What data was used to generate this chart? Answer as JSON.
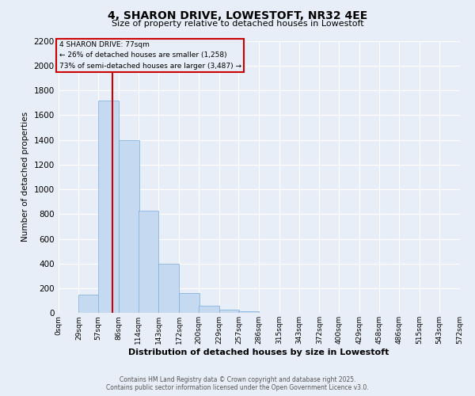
{
  "title": "4, SHARON DRIVE, LOWESTOFT, NR32 4EE",
  "subtitle": "Size of property relative to detached houses in Lowestoft",
  "xlabel": "Distribution of detached houses by size in Lowestoft",
  "ylabel": "Number of detached properties",
  "footer1": "Contains HM Land Registry data © Crown copyright and database right 2025.",
  "footer2": "Contains public sector information licensed under the Open Government Licence v3.0.",
  "annotation_line1": "4 SHARON DRIVE: 77sqm",
  "annotation_line2": "← 26% of detached houses are smaller (1,258)",
  "annotation_line3": "73% of semi-detached houses are larger (3,487) →",
  "bar_color": "#c5d9f0",
  "bar_edge_color": "#7aabe0",
  "vline_color": "#cc0000",
  "annotation_box_color": "#cc0000",
  "background_color": "#e8eef8",
  "grid_color": "#ffffff",
  "bins": [
    0,
    29,
    57,
    86,
    114,
    143,
    172,
    200,
    229,
    257,
    286,
    315,
    343,
    372,
    400,
    429,
    458,
    486,
    515,
    543,
    572
  ],
  "bin_labels": [
    "0sqm",
    "29sqm",
    "57sqm",
    "86sqm",
    "114sqm",
    "143sqm",
    "172sqm",
    "200sqm",
    "229sqm",
    "257sqm",
    "286sqm",
    "315sqm",
    "343sqm",
    "372sqm",
    "400sqm",
    "429sqm",
    "458sqm",
    "486sqm",
    "515sqm",
    "543sqm",
    "572sqm"
  ],
  "values": [
    5,
    150,
    1720,
    1400,
    830,
    400,
    160,
    60,
    25,
    15,
    5,
    5,
    2,
    1,
    0,
    0,
    0,
    0,
    0,
    0
  ],
  "vline_x": 77,
  "ylim": [
    0,
    2200
  ],
  "yticks": [
    0,
    200,
    400,
    600,
    800,
    1000,
    1200,
    1400,
    1600,
    1800,
    2000,
    2200
  ]
}
